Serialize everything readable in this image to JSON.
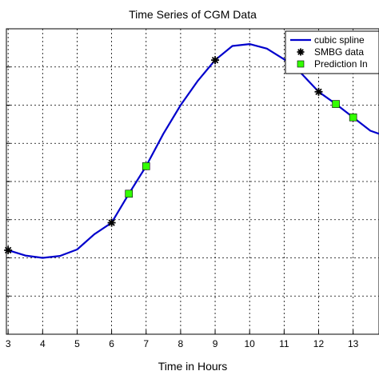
{
  "chart_data": {
    "type": "line",
    "title": "Time Series of CGM Data",
    "xlabel": "Time in Hours",
    "ylabel": "",
    "xlim": [
      2.95,
      13.75
    ],
    "ylim": [
      0,
      8
    ],
    "x_ticks": [
      3,
      4,
      5,
      6,
      7,
      8,
      9,
      10,
      11,
      12,
      13
    ],
    "y_ticks": [
      1,
      2,
      3,
      4,
      5,
      6,
      7,
      8
    ],
    "grid": true,
    "legend_position": "top-right",
    "series": [
      {
        "name": "cubic spline",
        "style": "line",
        "color": "#0000cc",
        "x": [
          2.95,
          3.0,
          3.5,
          4.0,
          4.5,
          5.0,
          5.5,
          6.0,
          6.5,
          7.0,
          7.5,
          8.0,
          8.5,
          9.0,
          9.5,
          10.0,
          10.5,
          11.0,
          11.5,
          12.0,
          12.5,
          13.0,
          13.5,
          13.75
        ],
        "y": [
          2.22,
          2.2,
          2.06,
          2.0,
          2.05,
          2.22,
          2.62,
          2.92,
          3.68,
          4.4,
          5.25,
          6.0,
          6.64,
          7.18,
          7.55,
          7.6,
          7.48,
          7.2,
          6.83,
          6.35,
          6.03,
          5.68,
          5.33,
          5.25
        ]
      },
      {
        "name": "SMBG data",
        "style": "marker",
        "marker": "asterisk",
        "color": "#000000",
        "x": [
          3.0,
          6.0,
          9.0,
          12.0
        ],
        "y": [
          2.2,
          2.92,
          7.18,
          6.35
        ]
      },
      {
        "name": "Prediction In",
        "style": "marker",
        "marker": "square",
        "color": "#33ff00",
        "x": [
          6.5,
          7.0,
          12.5,
          13.0
        ],
        "y": [
          3.68,
          4.4,
          6.03,
          5.68
        ]
      }
    ]
  }
}
